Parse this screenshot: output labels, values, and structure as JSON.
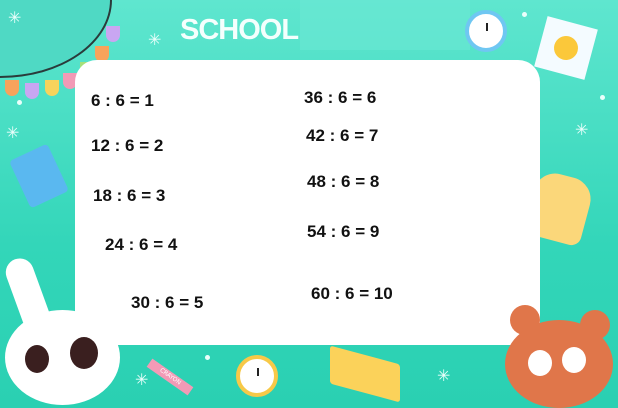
{
  "header": {
    "title": "SCHOOL"
  },
  "equations": {
    "left": [
      "6 : 6 = 1",
      "12 : 6 = 2",
      "18 : 6 = 3",
      "24 : 6 = 4",
      "30 : 6 = 5"
    ],
    "right": [
      "36 : 6 = 6",
      "42 : 6 = 7",
      "48 : 6 = 8",
      "54 : 6 = 9",
      "60 : 6 = 10"
    ]
  },
  "decorations": {
    "icons": [
      "clock-icon",
      "sun-icon",
      "book-icon",
      "backpack-icon",
      "bunny-illustration",
      "bear-illustration",
      "crayon-icon",
      "open-book-icon",
      "garland-icon"
    ],
    "crayon_label": "CRAYON"
  },
  "colors": {
    "background": "#3fdcc0",
    "card": "#ffffff",
    "text": "#111111"
  }
}
